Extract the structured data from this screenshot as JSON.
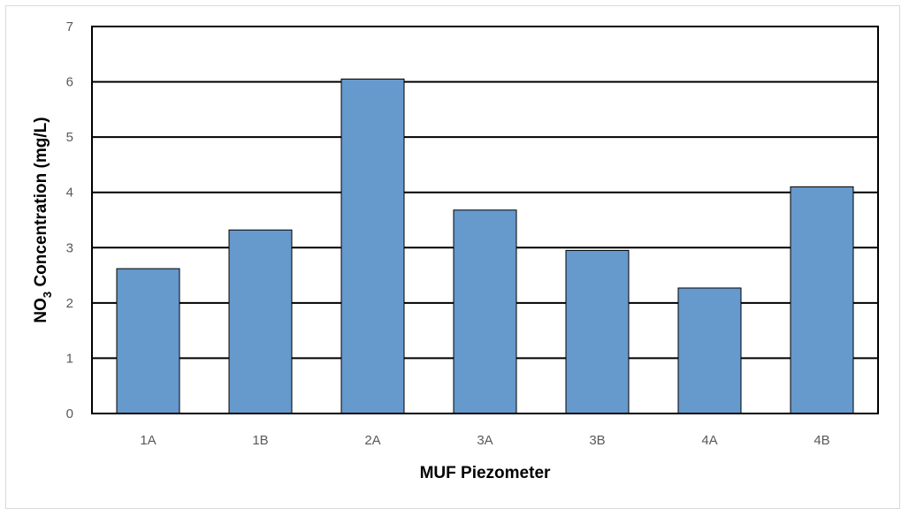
{
  "chart_data": {
    "type": "bar",
    "categories": [
      "1A",
      "1B",
      "2A",
      "3A",
      "3B",
      "4A",
      "4B"
    ],
    "values": [
      2.62,
      3.32,
      6.05,
      3.68,
      2.95,
      2.27,
      4.1
    ],
    "title": "",
    "xlabel": "MUF Piezometer",
    "ylabel": {
      "prefix": "NO",
      "subscript": "3",
      "suffix": " Concentration (mg/L)"
    },
    "ylim": [
      0,
      7
    ],
    "yticks": [
      "0",
      "1",
      "2",
      "3",
      "4",
      "5",
      "6",
      "7"
    ],
    "grid": true,
    "legend": "none",
    "colors": {
      "bar_fill": "#6699CC",
      "bar_stroke": "#000000",
      "gridline": "#000000",
      "plot_border": "#000000",
      "tick_label": "#595959",
      "axis_title": "#000000"
    }
  }
}
